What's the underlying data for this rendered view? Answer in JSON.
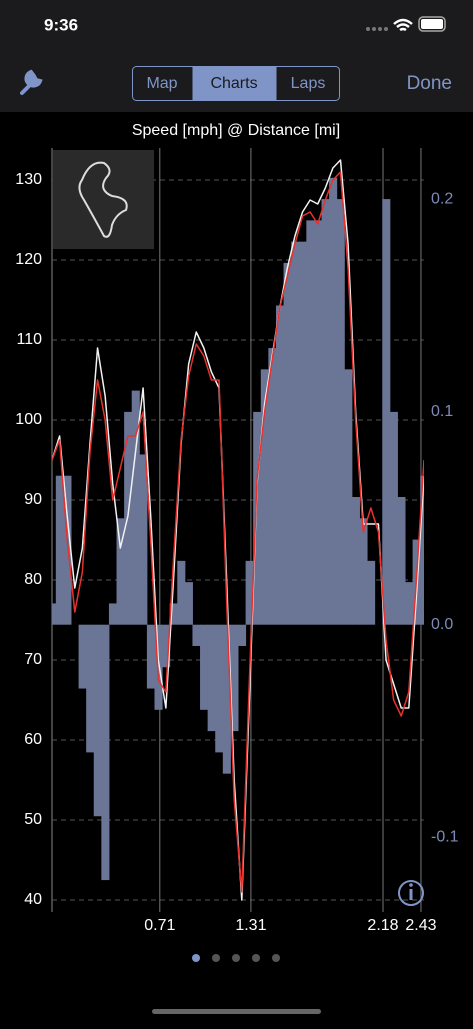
{
  "status_bar": {
    "time": "9:36"
  },
  "nav": {
    "tabs": [
      "Map",
      "Charts",
      "Laps"
    ],
    "done": "Done"
  },
  "chart_data": {
    "type": "line",
    "title": "Speed [mph] @ Distance [mi]",
    "x": [
      0,
      0.05,
      0.1,
      0.15,
      0.2,
      0.25,
      0.3,
      0.35,
      0.4,
      0.45,
      0.5,
      0.55,
      0.6,
      0.65,
      0.7,
      0.75,
      0.8,
      0.85,
      0.9,
      0.95,
      1,
      1.05,
      1.1,
      1.15,
      1.2,
      1.25,
      1.3,
      1.35,
      1.4,
      1.45,
      1.5,
      1.55,
      1.6,
      1.65,
      1.7,
      1.75,
      1.8,
      1.85,
      1.9,
      1.95,
      2,
      2.05,
      2.1,
      2.15,
      2.2,
      2.25,
      2.3,
      2.35,
      2.4,
      2.45
    ],
    "xlim": [
      0,
      2.45
    ],
    "xticks": [
      0.71,
      1.31,
      2.18,
      2.43
    ],
    "ylim": [
      38.5,
      134
    ],
    "yticks": [
      40,
      50,
      60,
      70,
      80,
      90,
      100,
      110,
      120,
      130
    ],
    "y2lim": [
      -0.135,
      0.224
    ],
    "y2ticks": [
      -0.1,
      {
        "value": 0,
        "label": "0.0"
      },
      0.1,
      0.2
    ],
    "grid": true,
    "series": [
      {
        "type": "bar",
        "axis": "y2",
        "color": "#6b7596",
        "values": [
          0.01,
          0.07,
          0.07,
          0,
          -0.03,
          -0.06,
          -0.09,
          -0.12,
          0.01,
          0.05,
          0.1,
          0.11,
          0.08,
          -0.03,
          -0.04,
          -0.02,
          0.01,
          0.03,
          0.02,
          -0.01,
          -0.04,
          -0.05,
          -0.06,
          -0.07,
          -0.05,
          -0.01,
          0.03,
          0.1,
          0.12,
          0.13,
          0.15,
          0.17,
          0.18,
          0.18,
          0.19,
          0.19,
          0.2,
          0.21,
          0.2,
          0.12,
          0.06,
          0.05,
          0.03,
          0,
          0.2,
          0.1,
          0.06,
          0.02,
          0.04,
          0.07
        ]
      },
      {
        "type": "line",
        "color": "#f2f2f2",
        "values": [
          95,
          98,
          88,
          79,
          84,
          97,
          109,
          103,
          92,
          84,
          88,
          96,
          104,
          88,
          70,
          64,
          80,
          97,
          107,
          111,
          109,
          106,
          104,
          80,
          55,
          40,
          65,
          92,
          102,
          108,
          114,
          119,
          123,
          126,
          127.5,
          127,
          129,
          131.5,
          132.5,
          122,
          101,
          87,
          87,
          87,
          70,
          67,
          64,
          64,
          78,
          93
        ]
      },
      {
        "type": "line",
        "color": "#e8322e",
        "values": [
          95,
          97.5,
          85,
          76,
          81,
          96,
          105,
          100,
          90,
          94,
          98,
          98,
          101,
          85,
          67.5,
          66,
          82.5,
          97.5,
          105.5,
          109.5,
          108,
          105,
          105,
          77.5,
          52.5,
          41,
          67.5,
          92.5,
          101,
          107.5,
          114,
          118,
          122,
          125.5,
          126,
          124.5,
          127.5,
          130,
          131,
          119,
          100,
          86,
          89,
          86,
          72.5,
          65,
          63,
          66,
          80,
          95
        ]
      }
    ]
  }
}
